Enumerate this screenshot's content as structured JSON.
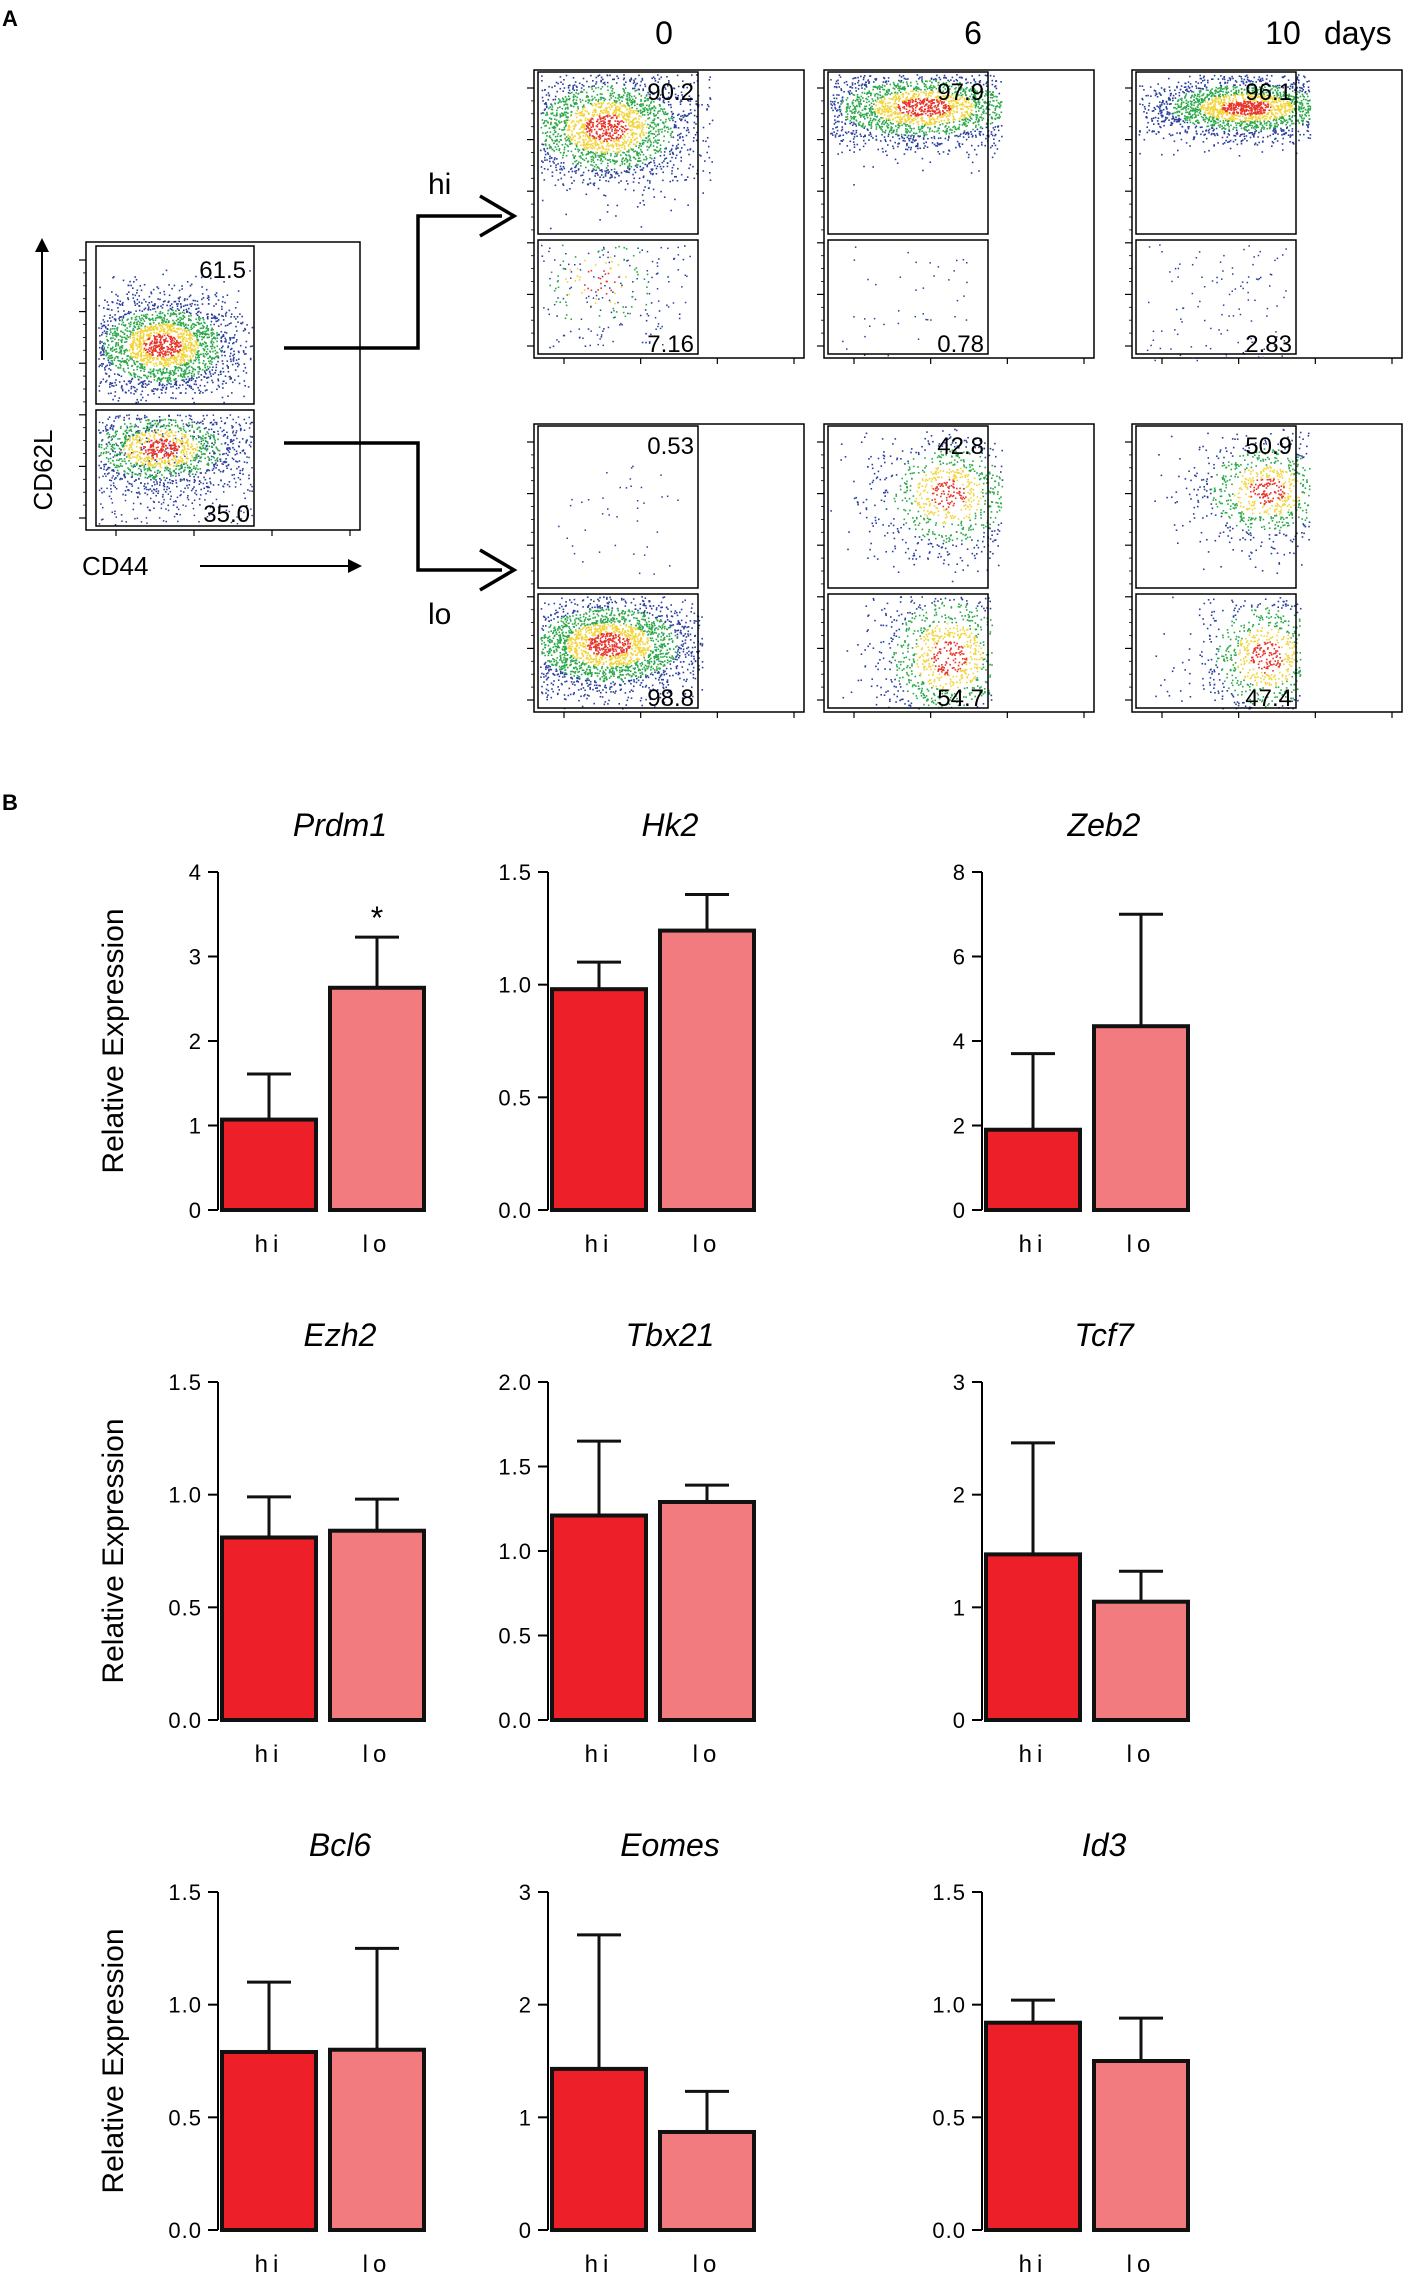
{
  "panel_labels": {
    "a": "A",
    "b": "B"
  },
  "panel_a": {
    "source_plot": {
      "x_label": "CD44",
      "y_label": "CD62L",
      "gates": [
        {
          "name": "hi",
          "value": "61.5"
        },
        {
          "name": "lo",
          "value": "35.0"
        }
      ]
    },
    "timepoints": [
      "0",
      "6",
      "10"
    ],
    "days_label": "days",
    "rows": [
      {
        "label": "hi",
        "top_values": [
          "90.2",
          "97.9",
          "96.1"
        ],
        "bottom_values": [
          "7.16",
          "0.78",
          "2.83"
        ]
      },
      {
        "label": "lo",
        "top_values": [
          "0.53",
          "42.8",
          "50.9"
        ],
        "bottom_values": [
          "98.8",
          "54.7",
          "47.4"
        ]
      }
    ],
    "colors": {
      "low_density": "#2a3f9d",
      "mid_density": "#2aa84a",
      "high_density": "#f2d43a",
      "peak_density": "#e8352a"
    }
  },
  "chart_data": [
    {
      "type": "bar",
      "title": "Prdm1",
      "ylabel": "Relative Expression",
      "categories": [
        "hi",
        "lo"
      ],
      "values": [
        1.07,
        2.63
      ],
      "errors": [
        0.54,
        0.6
      ],
      "ylim": [
        0,
        4
      ],
      "yticks": [
        "0",
        "1",
        "2",
        "3",
        "4"
      ],
      "annotations": [
        "*"
      ],
      "colors": [
        "#ed2029",
        "#f27b80"
      ]
    },
    {
      "type": "bar",
      "title": "Hk2",
      "ylabel": "",
      "categories": [
        "hi",
        "lo"
      ],
      "values": [
        0.98,
        1.24
      ],
      "errors": [
        0.12,
        0.16
      ],
      "ylim": [
        0,
        1.5
      ],
      "yticks": [
        "0.0",
        "0.5",
        "1.0",
        "1.5"
      ],
      "annotations": [],
      "colors": [
        "#ed2029",
        "#f27b80"
      ]
    },
    {
      "type": "bar",
      "title": "Zeb2",
      "ylabel": "",
      "categories": [
        "hi",
        "lo"
      ],
      "values": [
        1.9,
        4.35
      ],
      "errors": [
        1.8,
        2.65
      ],
      "ylim": [
        0,
        8
      ],
      "yticks": [
        "0",
        "2",
        "4",
        "6",
        "8"
      ],
      "annotations": [],
      "colors": [
        "#ed2029",
        "#f27b80"
      ]
    },
    {
      "type": "bar",
      "title": "Ezh2",
      "ylabel": "Relative Expression",
      "categories": [
        "hi",
        "lo"
      ],
      "values": [
        0.81,
        0.84
      ],
      "errors": [
        0.18,
        0.14
      ],
      "ylim": [
        0,
        1.5
      ],
      "yticks": [
        "0.0",
        "0.5",
        "1.0",
        "1.5"
      ],
      "annotations": [],
      "colors": [
        "#ed2029",
        "#f27b80"
      ]
    },
    {
      "type": "bar",
      "title": "Tbx21",
      "ylabel": "",
      "categories": [
        "hi",
        "lo"
      ],
      "values": [
        1.21,
        1.29
      ],
      "errors": [
        0.44,
        0.1
      ],
      "ylim": [
        0,
        2
      ],
      "yticks": [
        "0.0",
        "0.5",
        "1.0",
        "1.5",
        "2.0"
      ],
      "annotations": [],
      "colors": [
        "#ed2029",
        "#f27b80"
      ]
    },
    {
      "type": "bar",
      "title": "Tcf7",
      "ylabel": "",
      "categories": [
        "hi",
        "lo"
      ],
      "values": [
        1.47,
        1.05
      ],
      "errors": [
        0.99,
        0.27
      ],
      "ylim": [
        0,
        3
      ],
      "yticks": [
        "0",
        "1",
        "2",
        "3"
      ],
      "annotations": [],
      "colors": [
        "#ed2029",
        "#f27b80"
      ]
    },
    {
      "type": "bar",
      "title": "Bcl6",
      "ylabel": "Relative Expression",
      "categories": [
        "hi",
        "lo"
      ],
      "values": [
        0.79,
        0.8
      ],
      "errors": [
        0.31,
        0.45
      ],
      "ylim": [
        0,
        1.5
      ],
      "yticks": [
        "0.0",
        "0.5",
        "1.0",
        "1.5"
      ],
      "annotations": [],
      "colors": [
        "#ed2029",
        "#f27b80"
      ]
    },
    {
      "type": "bar",
      "title": "Eomes",
      "ylabel": "",
      "categories": [
        "hi",
        "lo"
      ],
      "values": [
        1.43,
        0.87
      ],
      "errors": [
        1.19,
        0.36
      ],
      "ylim": [
        0,
        3
      ],
      "yticks": [
        "0",
        "1",
        "2",
        "3"
      ],
      "annotations": [],
      "colors": [
        "#ed2029",
        "#f27b80"
      ]
    },
    {
      "type": "bar",
      "title": "Id3",
      "ylabel": "",
      "categories": [
        "hi",
        "lo"
      ],
      "values": [
        0.92,
        0.75
      ],
      "errors": [
        0.1,
        0.19
      ],
      "ylim": [
        0,
        1.5
      ],
      "yticks": [
        "0.0",
        "0.5",
        "1.0",
        "1.5"
      ],
      "annotations": [],
      "colors": [
        "#ed2029",
        "#f27b80"
      ]
    }
  ]
}
